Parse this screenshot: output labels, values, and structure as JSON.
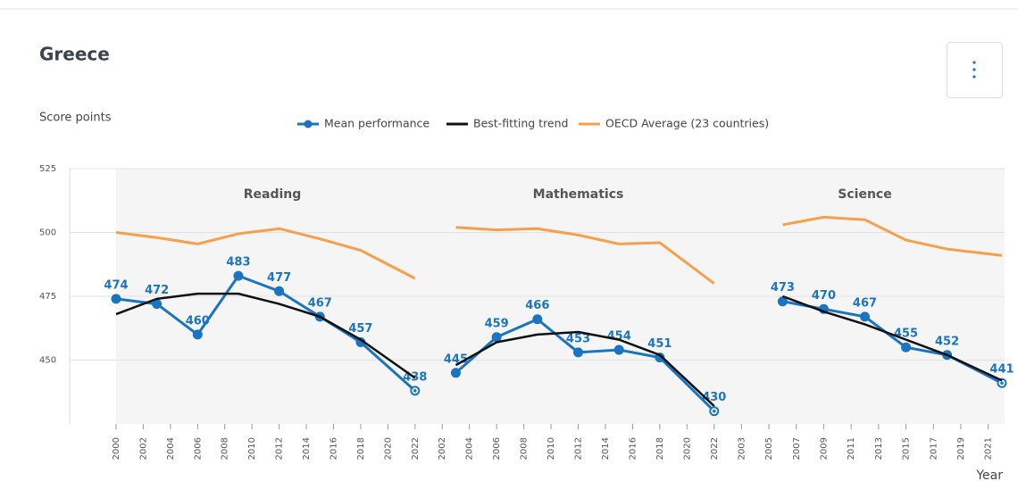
{
  "chart_data": {
    "type": "line",
    "title": "Greece",
    "ylabel": "Score points",
    "xlabel": "Year",
    "ylim": [
      425,
      525
    ],
    "yticks": [
      450,
      475,
      500,
      525
    ],
    "grid": true,
    "legend": "top",
    "panels": [
      {
        "name": "Reading",
        "x": [
          2000,
          2003,
          2006,
          2009,
          2012,
          2015,
          2018,
          2022
        ],
        "xlim": [
          2000,
          2023
        ],
        "xticks": [
          2000,
          2002,
          2004,
          2006,
          2008,
          2010,
          2012,
          2014,
          2016,
          2018,
          2020,
          2022
        ]
      },
      {
        "name": "Mathematics",
        "x": [
          2003,
          2006,
          2009,
          2012,
          2015,
          2018,
          2022
        ],
        "xlim": [
          2001,
          2023
        ],
        "xticks": [
          2002,
          2004,
          2006,
          2008,
          2010,
          2012,
          2014,
          2016,
          2018,
          2020,
          2022
        ]
      },
      {
        "name": "Science",
        "x": [
          2006,
          2009,
          2012,
          2015,
          2018,
          2022
        ],
        "xlim": [
          2002,
          2022
        ],
        "xticks": [
          2003,
          2005,
          2007,
          2009,
          2011,
          2013,
          2015,
          2017,
          2019,
          2021
        ]
      }
    ],
    "series": [
      {
        "name": "Mean performance",
        "color": "#1b74c0",
        "values": [
          [
            474,
            472,
            460,
            483,
            477,
            467,
            457,
            438
          ],
          [
            445,
            459,
            466,
            453,
            454,
            451,
            430
          ],
          [
            473,
            470,
            467,
            455,
            452,
            441
          ]
        ]
      },
      {
        "name": "Best-fitting trend",
        "color": "#111111",
        "values": [
          [
            468,
            474,
            476,
            476,
            472,
            467,
            458,
            443
          ],
          [
            448,
            457,
            460,
            461,
            458,
            452,
            432
          ],
          [
            475,
            469,
            464,
            458,
            452,
            442
          ]
        ]
      },
      {
        "name": "OECD Average (23 countries)",
        "color": "#f7a04b",
        "values": [
          [
            500,
            498,
            495.5,
            499.5,
            501.5,
            497.5,
            493,
            482
          ],
          [
            502,
            501,
            501.5,
            499,
            495.5,
            496,
            480
          ],
          [
            503,
            506,
            505,
            497,
            493.5,
            491
          ]
        ]
      }
    ]
  }
}
